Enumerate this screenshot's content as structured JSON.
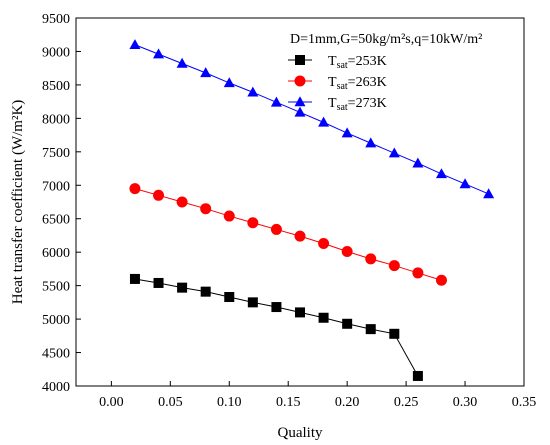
{
  "chart_data": {
    "type": "scatter",
    "annotation": "D=1mm,G=50kg/m²s,q=10kW/m²",
    "xlabel": "Quality",
    "ylabel": "Heat transfer coefficient (W/m²K)",
    "xlim": [
      -0.03,
      0.35
    ],
    "ylim": [
      4000,
      9500
    ],
    "xticks": [
      "0.00",
      "0.05",
      "0.10",
      "0.15",
      "0.20",
      "0.25",
      "0.30",
      "0.35"
    ],
    "xtick_values": [
      0.0,
      0.05,
      0.1,
      0.15,
      0.2,
      0.25,
      0.3,
      0.35
    ],
    "yticks": [
      "4000",
      "4500",
      "5000",
      "5500",
      "6000",
      "6500",
      "7000",
      "7500",
      "8000",
      "8500",
      "9000",
      "9500"
    ],
    "ytick_values": [
      4000,
      4500,
      5000,
      5500,
      6000,
      6500,
      7000,
      7500,
      8000,
      8500,
      9000,
      9500
    ],
    "grid": false,
    "legend_position": "top-right",
    "series": [
      {
        "name": "Tsat=253K",
        "legend_main": "T",
        "legend_sub": "sat",
        "legend_rest": "=253K",
        "marker": "square",
        "color": "#000000",
        "x": [
          0.02,
          0.04,
          0.06,
          0.08,
          0.1,
          0.12,
          0.14,
          0.16,
          0.18,
          0.2,
          0.22,
          0.24,
          0.26
        ],
        "y": [
          5600,
          5540,
          5470,
          5410,
          5330,
          5250,
          5180,
          5100,
          5020,
          4930,
          4850,
          4780,
          4150
        ]
      },
      {
        "name": "Tsat=263K",
        "legend_main": "T",
        "legend_sub": "sat",
        "legend_rest": "=263K",
        "marker": "circle",
        "color": "#ff0000",
        "x": [
          0.02,
          0.04,
          0.06,
          0.08,
          0.1,
          0.12,
          0.14,
          0.16,
          0.18,
          0.2,
          0.22,
          0.24,
          0.26,
          0.28
        ],
        "y": [
          6950,
          6850,
          6750,
          6650,
          6540,
          6440,
          6340,
          6240,
          6130,
          6010,
          5900,
          5800,
          5690,
          5580
        ]
      },
      {
        "name": "Tsat=273K",
        "legend_main": "T",
        "legend_sub": "sat",
        "legend_rest": "=273K",
        "marker": "triangle",
        "color": "#0000ff",
        "x": [
          0.02,
          0.04,
          0.06,
          0.08,
          0.1,
          0.12,
          0.14,
          0.16,
          0.18,
          0.2,
          0.22,
          0.24,
          0.26,
          0.28,
          0.3,
          0.32
        ],
        "y": [
          9100,
          8960,
          8820,
          8680,
          8530,
          8390,
          8240,
          8090,
          7940,
          7780,
          7630,
          7480,
          7330,
          7170,
          7020,
          6870
        ]
      }
    ]
  }
}
